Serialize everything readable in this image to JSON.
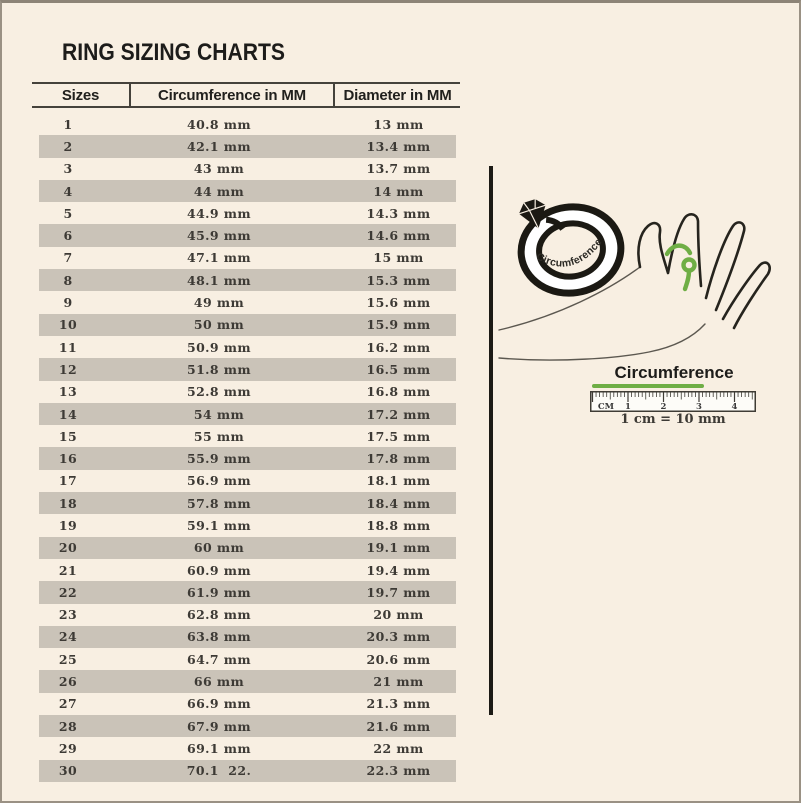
{
  "page": {
    "title": "RING SIZING CHARTS"
  },
  "table": {
    "headers": [
      "Sizes",
      "Circumference in MM",
      "Diameter in MM"
    ],
    "rows": [
      {
        "size": "1",
        "circumference": "40.8 mm",
        "diameter": "13 mm"
      },
      {
        "size": "2",
        "circumference": "42.1 mm",
        "diameter": "13.4 mm"
      },
      {
        "size": "3",
        "circumference": "43 mm",
        "diameter": "13.7 mm"
      },
      {
        "size": "4",
        "circumference": "44 mm",
        "diameter": "14 mm"
      },
      {
        "size": "5",
        "circumference": "44.9 mm",
        "diameter": "14.3 mm"
      },
      {
        "size": "6",
        "circumference": "45.9 mm",
        "diameter": "14.6 mm"
      },
      {
        "size": "7",
        "circumference": "47.1 mm",
        "diameter": "15 mm"
      },
      {
        "size": "8",
        "circumference": "48.1 mm",
        "diameter": "15.3 mm"
      },
      {
        "size": "9",
        "circumference": "49 mm",
        "diameter": "15.6 mm"
      },
      {
        "size": "10",
        "circumference": "50 mm",
        "diameter": "15.9 mm"
      },
      {
        "size": "11",
        "circumference": "50.9 mm",
        "diameter": "16.2 mm"
      },
      {
        "size": "12",
        "circumference": "51.8 mm",
        "diameter": "16.5 mm"
      },
      {
        "size": "13",
        "circumference": "52.8 mm",
        "diameter": "16.8 mm"
      },
      {
        "size": "14",
        "circumference": "54 mm",
        "diameter": "17.2 mm"
      },
      {
        "size": "15",
        "circumference": "55 mm",
        "diameter": "17.5 mm"
      },
      {
        "size": "16",
        "circumference": "55.9 mm",
        "diameter": "17.8 mm"
      },
      {
        "size": "17",
        "circumference": "56.9 mm",
        "diameter": "18.1 mm"
      },
      {
        "size": "18",
        "circumference": "57.8 mm",
        "diameter": "18.4 mm"
      },
      {
        "size": "19",
        "circumference": "59.1 mm",
        "diameter": "18.8 mm"
      },
      {
        "size": "20",
        "circumference": "60 mm",
        "diameter": "19.1 mm"
      },
      {
        "size": "21",
        "circumference": "60.9 mm",
        "diameter": "19.4 mm"
      },
      {
        "size": "22",
        "circumference": "61.9 mm",
        "diameter": "19.7 mm"
      },
      {
        "size": "23",
        "circumference": "62.8 mm",
        "diameter": "20 mm"
      },
      {
        "size": "24",
        "circumference": "63.8 mm",
        "diameter": "20.3 mm"
      },
      {
        "size": "25",
        "circumference": "64.7 mm",
        "diameter": "20.6 mm"
      },
      {
        "size": "26",
        "circumference": "66 mm",
        "diameter": "21 mm"
      },
      {
        "size": "27",
        "circumference": "66.9 mm",
        "diameter": "21.3 mm"
      },
      {
        "size": "28",
        "circumference": "67.9 mm",
        "diameter": "21.6 mm"
      },
      {
        "size": "29",
        "circumference": "69.1 mm",
        "diameter": "22 mm"
      },
      {
        "size": "30",
        "circumference": "70.1  22.",
        "diameter": "22.3 mm"
      }
    ]
  },
  "illustration": {
    "ring_label": "Circumference",
    "ruler_label": "Circumference",
    "ruler_note": "1 cm = 10 mm",
    "ruler_tick_labels": [
      "CM",
      "1",
      "2",
      "3",
      "4"
    ]
  },
  "colors": {
    "background": "#f8efe2",
    "row_band": "#cac3b8",
    "line": "#45423b",
    "accent_green": "#6fae45",
    "text": "#3d3a35"
  },
  "chart_data": {
    "type": "table",
    "title": "RING SIZING CHARTS",
    "columns": [
      "Sizes",
      "Circumference in MM",
      "Diameter in MM"
    ],
    "rows": [
      [
        "1",
        "40.8 mm",
        "13 mm"
      ],
      [
        "2",
        "42.1 mm",
        "13.4 mm"
      ],
      [
        "3",
        "43 mm",
        "13.7 mm"
      ],
      [
        "4",
        "44 mm",
        "14 mm"
      ],
      [
        "5",
        "44.9 mm",
        "14.3 mm"
      ],
      [
        "6",
        "45.9 mm",
        "14.6 mm"
      ],
      [
        "7",
        "47.1 mm",
        "15 mm"
      ],
      [
        "8",
        "48.1 mm",
        "15.3 mm"
      ],
      [
        "9",
        "49 mm",
        "15.6 mm"
      ],
      [
        "10",
        "50 mm",
        "15.9 mm"
      ],
      [
        "11",
        "50.9 mm",
        "16.2 mm"
      ],
      [
        "12",
        "51.8 mm",
        "16.5 mm"
      ],
      [
        "13",
        "52.8 mm",
        "16.8 mm"
      ],
      [
        "14",
        "54 mm",
        "17.2 mm"
      ],
      [
        "15",
        "55 mm",
        "17.5 mm"
      ],
      [
        "16",
        "55.9 mm",
        "17.8 mm"
      ],
      [
        "17",
        "56.9 mm",
        "18.1 mm"
      ],
      [
        "18",
        "57.8 mm",
        "18.4 mm"
      ],
      [
        "19",
        "59.1 mm",
        "18.8 mm"
      ],
      [
        "20",
        "60 mm",
        "19.1 mm"
      ],
      [
        "21",
        "60.9 mm",
        "19.4 mm"
      ],
      [
        "22",
        "61.9 mm",
        "19.7 mm"
      ],
      [
        "23",
        "62.8 mm",
        "20 mm"
      ],
      [
        "24",
        "63.8 mm",
        "20.3 mm"
      ],
      [
        "25",
        "64.7 mm",
        "20.6 mm"
      ],
      [
        "26",
        "66 mm",
        "21 mm"
      ],
      [
        "27",
        "66.9 mm",
        "21.3 mm"
      ],
      [
        "28",
        "67.9 mm",
        "21.6 mm"
      ],
      [
        "29",
        "69.1 mm",
        "22 mm"
      ],
      [
        "30",
        "70.1  22.",
        "22.3 mm"
      ]
    ],
    "annotations": [
      "Circumference (ring)",
      "Circumference (ruler)",
      "1 cm = 10 mm"
    ],
    "legend_position": "none",
    "grid": "alternating-row-bands"
  }
}
